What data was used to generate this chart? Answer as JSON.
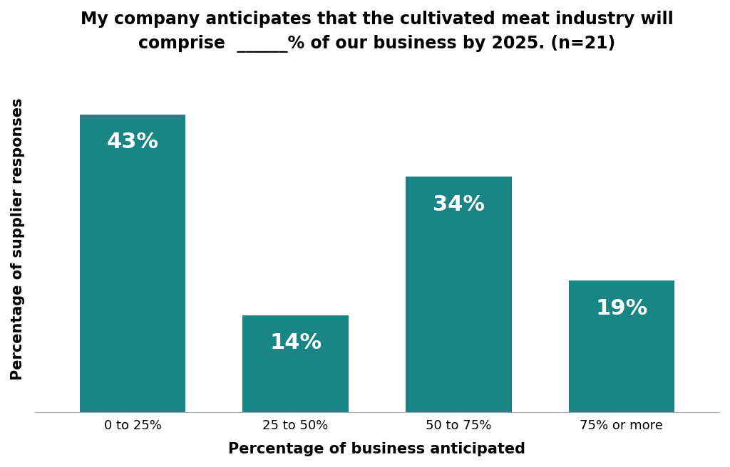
{
  "categories": [
    "0 to 25%",
    "25 to 50%",
    "50 to 75%",
    "75% or more"
  ],
  "values": [
    43,
    14,
    34,
    19
  ],
  "bar_color": "#1a8585",
  "bar_labels": [
    "43%",
    "14%",
    "34%",
    "19%"
  ],
  "title_line1": "My company anticipates that the cultivated meat industry will",
  "title_line2": "comprise  ______% of our business by 2025. (n=21)",
  "xlabel": "Percentage of business anticipated",
  "ylabel": "Percentage of supplier responses",
  "ylim": [
    0,
    50
  ],
  "background_color": "#ffffff",
  "title_fontsize": 17,
  "label_fontsize": 22,
  "axis_label_fontsize": 15,
  "tick_fontsize": 13,
  "bar_width": 0.65
}
